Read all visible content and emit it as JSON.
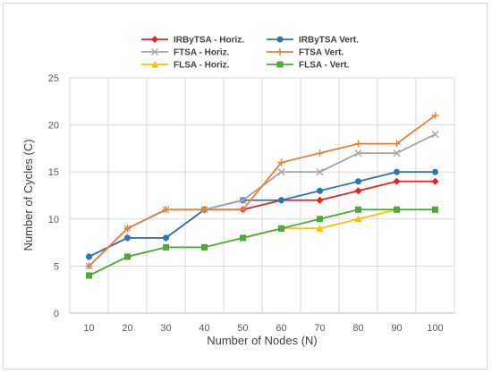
{
  "chart_data": {
    "type": "line",
    "title": "",
    "xlabel": "Number of Nodes (N)",
    "ylabel": "Number of Cycles (C)",
    "x": [
      10,
      20,
      30,
      40,
      50,
      60,
      70,
      80,
      90,
      100
    ],
    "ylim": [
      0,
      25
    ],
    "yticks": [
      0,
      5,
      10,
      15,
      20,
      25
    ],
    "grid": true,
    "legend_position": "top",
    "series": [
      {
        "name": "IRByTSA - Horiz.",
        "color": "#e8201e",
        "marker": "diamond",
        "values": [
          6,
          8,
          8,
          11,
          11,
          12,
          12,
          13,
          14,
          14
        ]
      },
      {
        "name": "IRByTSA Vert.",
        "color": "#2e75b6",
        "marker": "circle",
        "values": [
          6,
          8,
          8,
          11,
          12,
          12,
          13,
          14,
          15,
          15
        ]
      },
      {
        "name": "FTSA - Horiz.",
        "color": "#a5a5a5",
        "marker": "x",
        "values": [
          5,
          9,
          11,
          11,
          12,
          15,
          15,
          17,
          17,
          19
        ]
      },
      {
        "name": "FTSA Vert.",
        "color": "#ed7d31",
        "marker": "plus",
        "values": [
          5,
          9,
          11,
          11,
          11,
          16,
          17,
          18,
          18,
          21
        ]
      },
      {
        "name": "FLSA - Horiz.",
        "color": "#ffc000",
        "marker": "triangle",
        "values": [
          4,
          6,
          7,
          7,
          8,
          9,
          9,
          10,
          11,
          11
        ]
      },
      {
        "name": "FLSA - Vert.",
        "color": "#4aaa3a",
        "marker": "square",
        "values": [
          4,
          6,
          7,
          7,
          8,
          9,
          10,
          11,
          11,
          11
        ]
      }
    ]
  }
}
